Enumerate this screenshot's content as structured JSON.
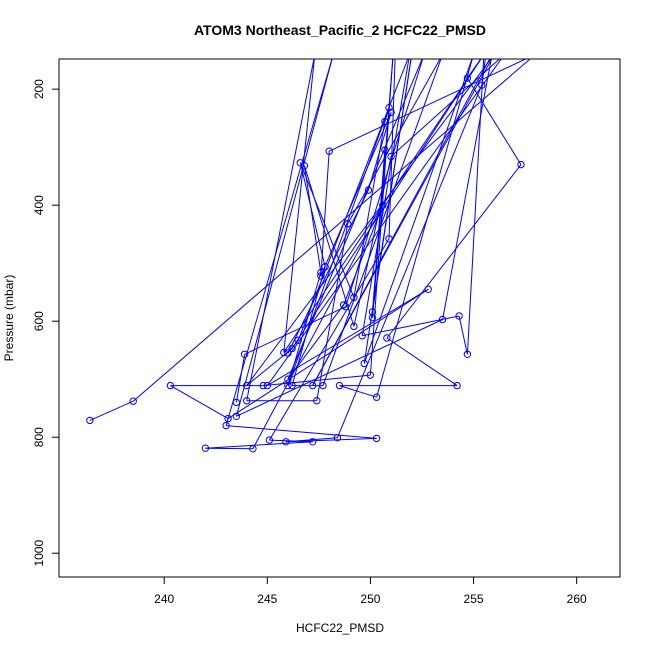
{
  "chart_data": {
    "type": "line",
    "title": "ATOM3 Northeast_Pacific_2 HCFC22_PMSD",
    "xlabel": "HCFC22_PMSD",
    "ylabel": "Pressure (mbar)",
    "xlim": [
      234.9,
      262.1
    ],
    "ylim": [
      1041,
      148
    ],
    "y_inverted": true,
    "grid": false,
    "xticks": [
      240,
      245,
      250,
      255,
      260
    ],
    "yticks": [
      200,
      400,
      600,
      800,
      1000
    ],
    "colors": {
      "series": "#0000ff"
    },
    "series": [
      {
        "points": [
          [
            236.4,
            771
          ],
          [
            238.5,
            738
          ],
          [
            258.0,
            140
          ],
          [
            248.0,
            307
          ],
          [
            247.6,
            522
          ],
          [
            251.0,
            240
          ],
          [
            249.9,
            374
          ],
          [
            246.0,
            655
          ],
          [
            246.5,
            633
          ],
          [
            251.9,
            140
          ],
          [
            249.6,
            625
          ],
          [
            254.3,
            591
          ],
          [
            254.7,
            657
          ],
          [
            255.5,
            140
          ],
          [
            254.7,
            181
          ],
          [
            257.3,
            330
          ],
          [
            250.8,
            629
          ],
          [
            254.2,
            711
          ],
          [
            248.5,
            711
          ],
          [
            250.3,
            731
          ],
          [
            255.0,
            140
          ],
          [
            249.7,
            673
          ],
          [
            252.0,
            140
          ],
          [
            250.1,
            584
          ],
          [
            250.7,
            305
          ],
          [
            250.1,
            594
          ],
          [
            251.1,
            140
          ],
          [
            250.0,
            693
          ],
          [
            244.8,
            711
          ],
          [
            240.3,
            711
          ],
          [
            243.1,
            768
          ],
          [
            252.8,
            545
          ],
          [
            245.0,
            711
          ],
          [
            256.5,
            140
          ],
          [
            251.0,
            316
          ],
          [
            249.2,
            609
          ],
          [
            246.8,
            332
          ],
          [
            247.6,
            516
          ],
          [
            246.0,
            711
          ],
          [
            250.9,
            232
          ],
          [
            250.7,
            256
          ],
          [
            249.2,
            559
          ],
          [
            246.6,
            327
          ],
          [
            247.8,
            506
          ],
          [
            246.2,
            711
          ],
          [
            247.7,
            711
          ],
          [
            253.5,
            140
          ],
          [
            248.9,
            432
          ],
          [
            247.4,
            737
          ],
          [
            244.0,
            737
          ],
          [
            247.3,
            140
          ],
          [
            245.8,
            654
          ],
          [
            255.5,
            140
          ],
          [
            246.2,
            647
          ],
          [
            244.0,
            711
          ],
          [
            256.0,
            140
          ],
          [
            247.2,
            711
          ],
          [
            255.9,
            140
          ],
          [
            253.5,
            597
          ],
          [
            243.5,
            764
          ],
          [
            248.2,
            140
          ],
          [
            243.0,
            780
          ],
          [
            250.3,
            802
          ],
          [
            245.9,
            808
          ],
          [
            248.4,
            801
          ],
          [
            255.4,
            193
          ],
          [
            255.6,
            140
          ],
          [
            251.2,
            140
          ],
          [
            250.9,
            458
          ],
          [
            245.1,
            805
          ],
          [
            247.2,
            808
          ],
          [
            242.0,
            819
          ],
          [
            244.3,
            820
          ],
          [
            250.6,
            400
          ],
          [
            248.7,
            572
          ],
          [
            246.0,
            700
          ],
          [
            252.6,
            140
          ],
          [
            248.8,
            575
          ],
          [
            243.9,
            657
          ],
          [
            243.5,
            740
          ]
        ]
      }
    ]
  }
}
